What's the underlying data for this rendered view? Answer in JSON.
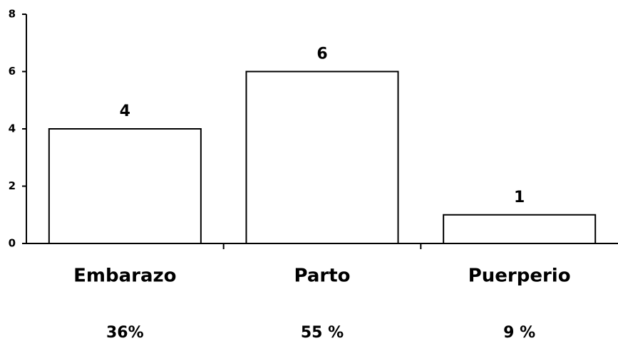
{
  "chart_data": {
    "type": "bar",
    "categories": [
      "Embarazo",
      "Parto",
      "Puerperio"
    ],
    "values": [
      4,
      6,
      1
    ],
    "percent_labels": [
      "36%",
      "55 %",
      "9 %"
    ],
    "color": "#ffffff",
    "ylim": [
      0,
      8
    ],
    "yticks": [
      0,
      2,
      4,
      6,
      8
    ],
    "grid": false
  }
}
